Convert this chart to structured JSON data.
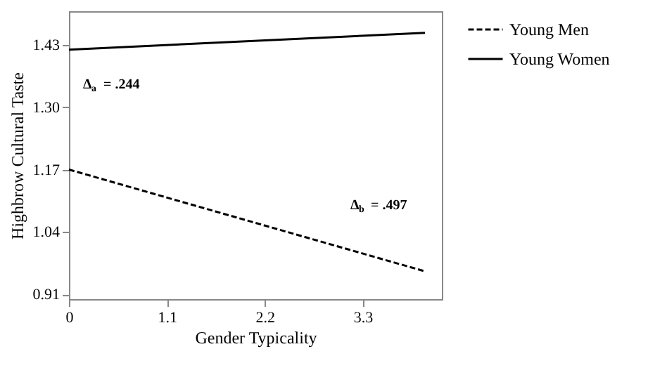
{
  "chart_data": {
    "type": "line",
    "xlabel": "Gender Typicality",
    "ylabel": "Highbrow Cultural Taste",
    "x": [
      0,
      4.0
    ],
    "xlim": [
      0,
      4.19
    ],
    "xticks": [
      0,
      1.1,
      2.2,
      3.3
    ],
    "ylim": [
      0.9,
      1.5
    ],
    "yticks": [
      0.91,
      1.04,
      1.17,
      {
        "value": 1.3,
        "label": "1.30"
      },
      1.43
    ],
    "series": [
      {
        "name": "Young Men",
        "color": "#000000",
        "line_style": "dashed",
        "values": [
          1.17,
          0.958
        ]
      },
      {
        "name": "Young Women",
        "color": "#000000",
        "line_style": "solid",
        "values": [
          1.42,
          1.455
        ]
      }
    ],
    "annotations": [
      "Δ$_{a}$ = .244",
      "Δ$_{b}$ = .497"
    ],
    "grid": false,
    "legend": "top right"
  }
}
